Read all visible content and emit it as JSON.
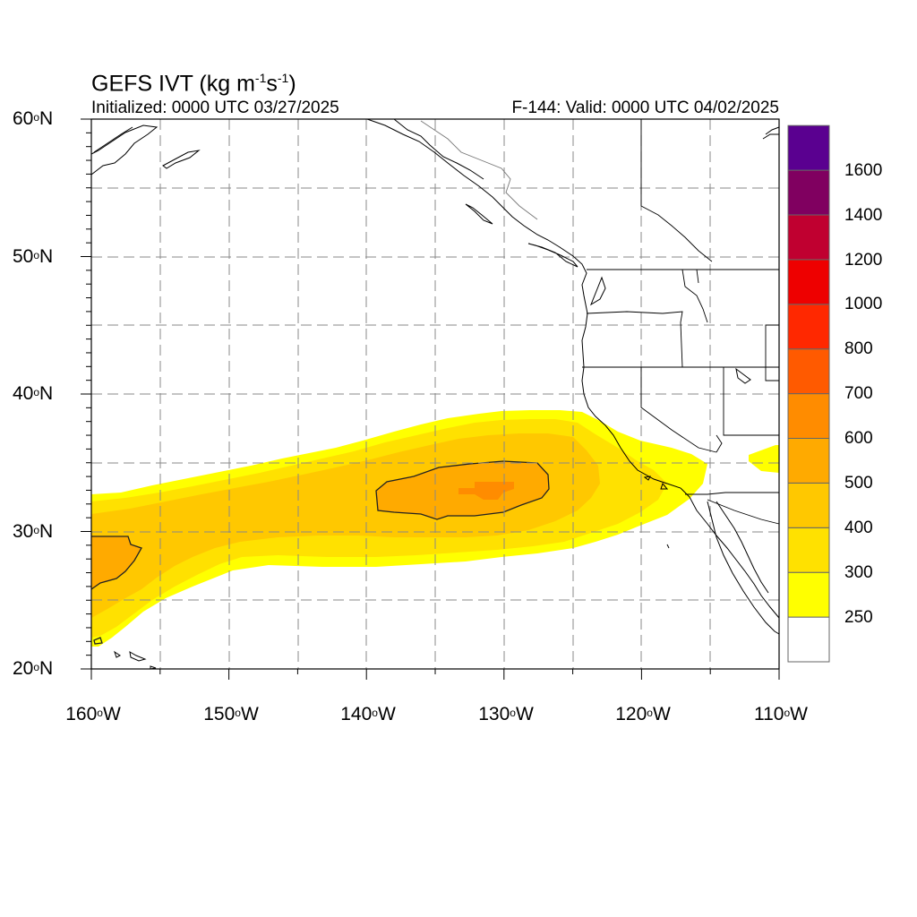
{
  "title": {
    "main": "GEFS IVT (kg m",
    "exp1": "-1",
    "mid": "s",
    "exp2": "-1",
    "end": ")"
  },
  "subtitle_left": "Initialized: 0000 UTC 03/27/2025",
  "subtitle_right": "F-144: Valid: 0000 UTC 04/02/2025",
  "lat_labels": [
    {
      "deg": "60",
      "hemi": "N"
    },
    {
      "deg": "50",
      "hemi": "N"
    },
    {
      "deg": "40",
      "hemi": "N"
    },
    {
      "deg": "30",
      "hemi": "N"
    },
    {
      "deg": "20",
      "hemi": "N"
    }
  ],
  "lon_labels": [
    {
      "deg": "160",
      "hemi": "W"
    },
    {
      "deg": "150",
      "hemi": "W"
    },
    {
      "deg": "140",
      "hemi": "W"
    },
    {
      "deg": "130",
      "hemi": "W"
    },
    {
      "deg": "120",
      "hemi": "W"
    },
    {
      "deg": "110",
      "hemi": "W"
    }
  ],
  "colorbar": {
    "labels": [
      "1600",
      "1400",
      "1200",
      "1000",
      "800",
      "700",
      "600",
      "500",
      "400",
      "300",
      "250"
    ],
    "colors": [
      "#ffffff",
      "#ffff00",
      "#ffe100",
      "#ffc800",
      "#ffaa00",
      "#ff8c00",
      "#ff5a00",
      "#ff2800",
      "#ee0000",
      "#c00030",
      "#800060",
      "#5a0090"
    ]
  },
  "colors": {
    "ivt_250": "#ffff00",
    "ivt_300": "#ffe100",
    "ivt_400": "#ffc800",
    "ivt_500": "#ffaa00",
    "ivt_600": "#ff8c00",
    "coast": "#000000",
    "grid": "#888888"
  }
}
